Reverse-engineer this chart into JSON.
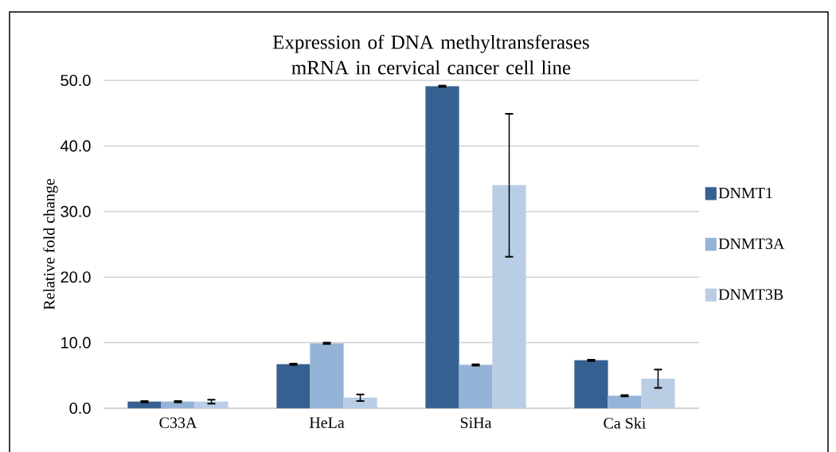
{
  "chart_data": {
    "type": "bar",
    "title": "Expression of DNA methyltransferases  mRNA in cervical cancer cell line",
    "ylabel": "Relative fold change",
    "categories": [
      "C33A",
      "HeLa",
      "SiHa",
      "Ca Ski"
    ],
    "series": [
      {
        "name": "DNMT1",
        "color": "#376092",
        "values": [
          1.0,
          6.7,
          49.1,
          7.3
        ],
        "errors": [
          0.1,
          0.1,
          0.1,
          0.1
        ]
      },
      {
        "name": "DNMT3A",
        "color": "#95b3d7",
        "values": [
          1.0,
          9.9,
          6.6,
          1.9
        ],
        "errors": [
          0.1,
          0.1,
          0.1,
          0.1
        ]
      },
      {
        "name": "DNMT3B",
        "color": "#b9cde5",
        "values": [
          1.0,
          1.6,
          34.0,
          4.5
        ],
        "errors": [
          0.3,
          0.5,
          10.9,
          1.4
        ]
      }
    ],
    "ylim": [
      0,
      50
    ],
    "yticks": [
      {
        "value": 0,
        "label": "0.0"
      },
      {
        "value": 10,
        "label": "10.0"
      },
      {
        "value": 20,
        "label": "20.0"
      },
      {
        "value": 30,
        "label": "30.0"
      },
      {
        "value": 40,
        "label": "40.0"
      },
      {
        "value": 50,
        "label": "50.0"
      }
    ],
    "grid": "y",
    "legend": "right"
  }
}
